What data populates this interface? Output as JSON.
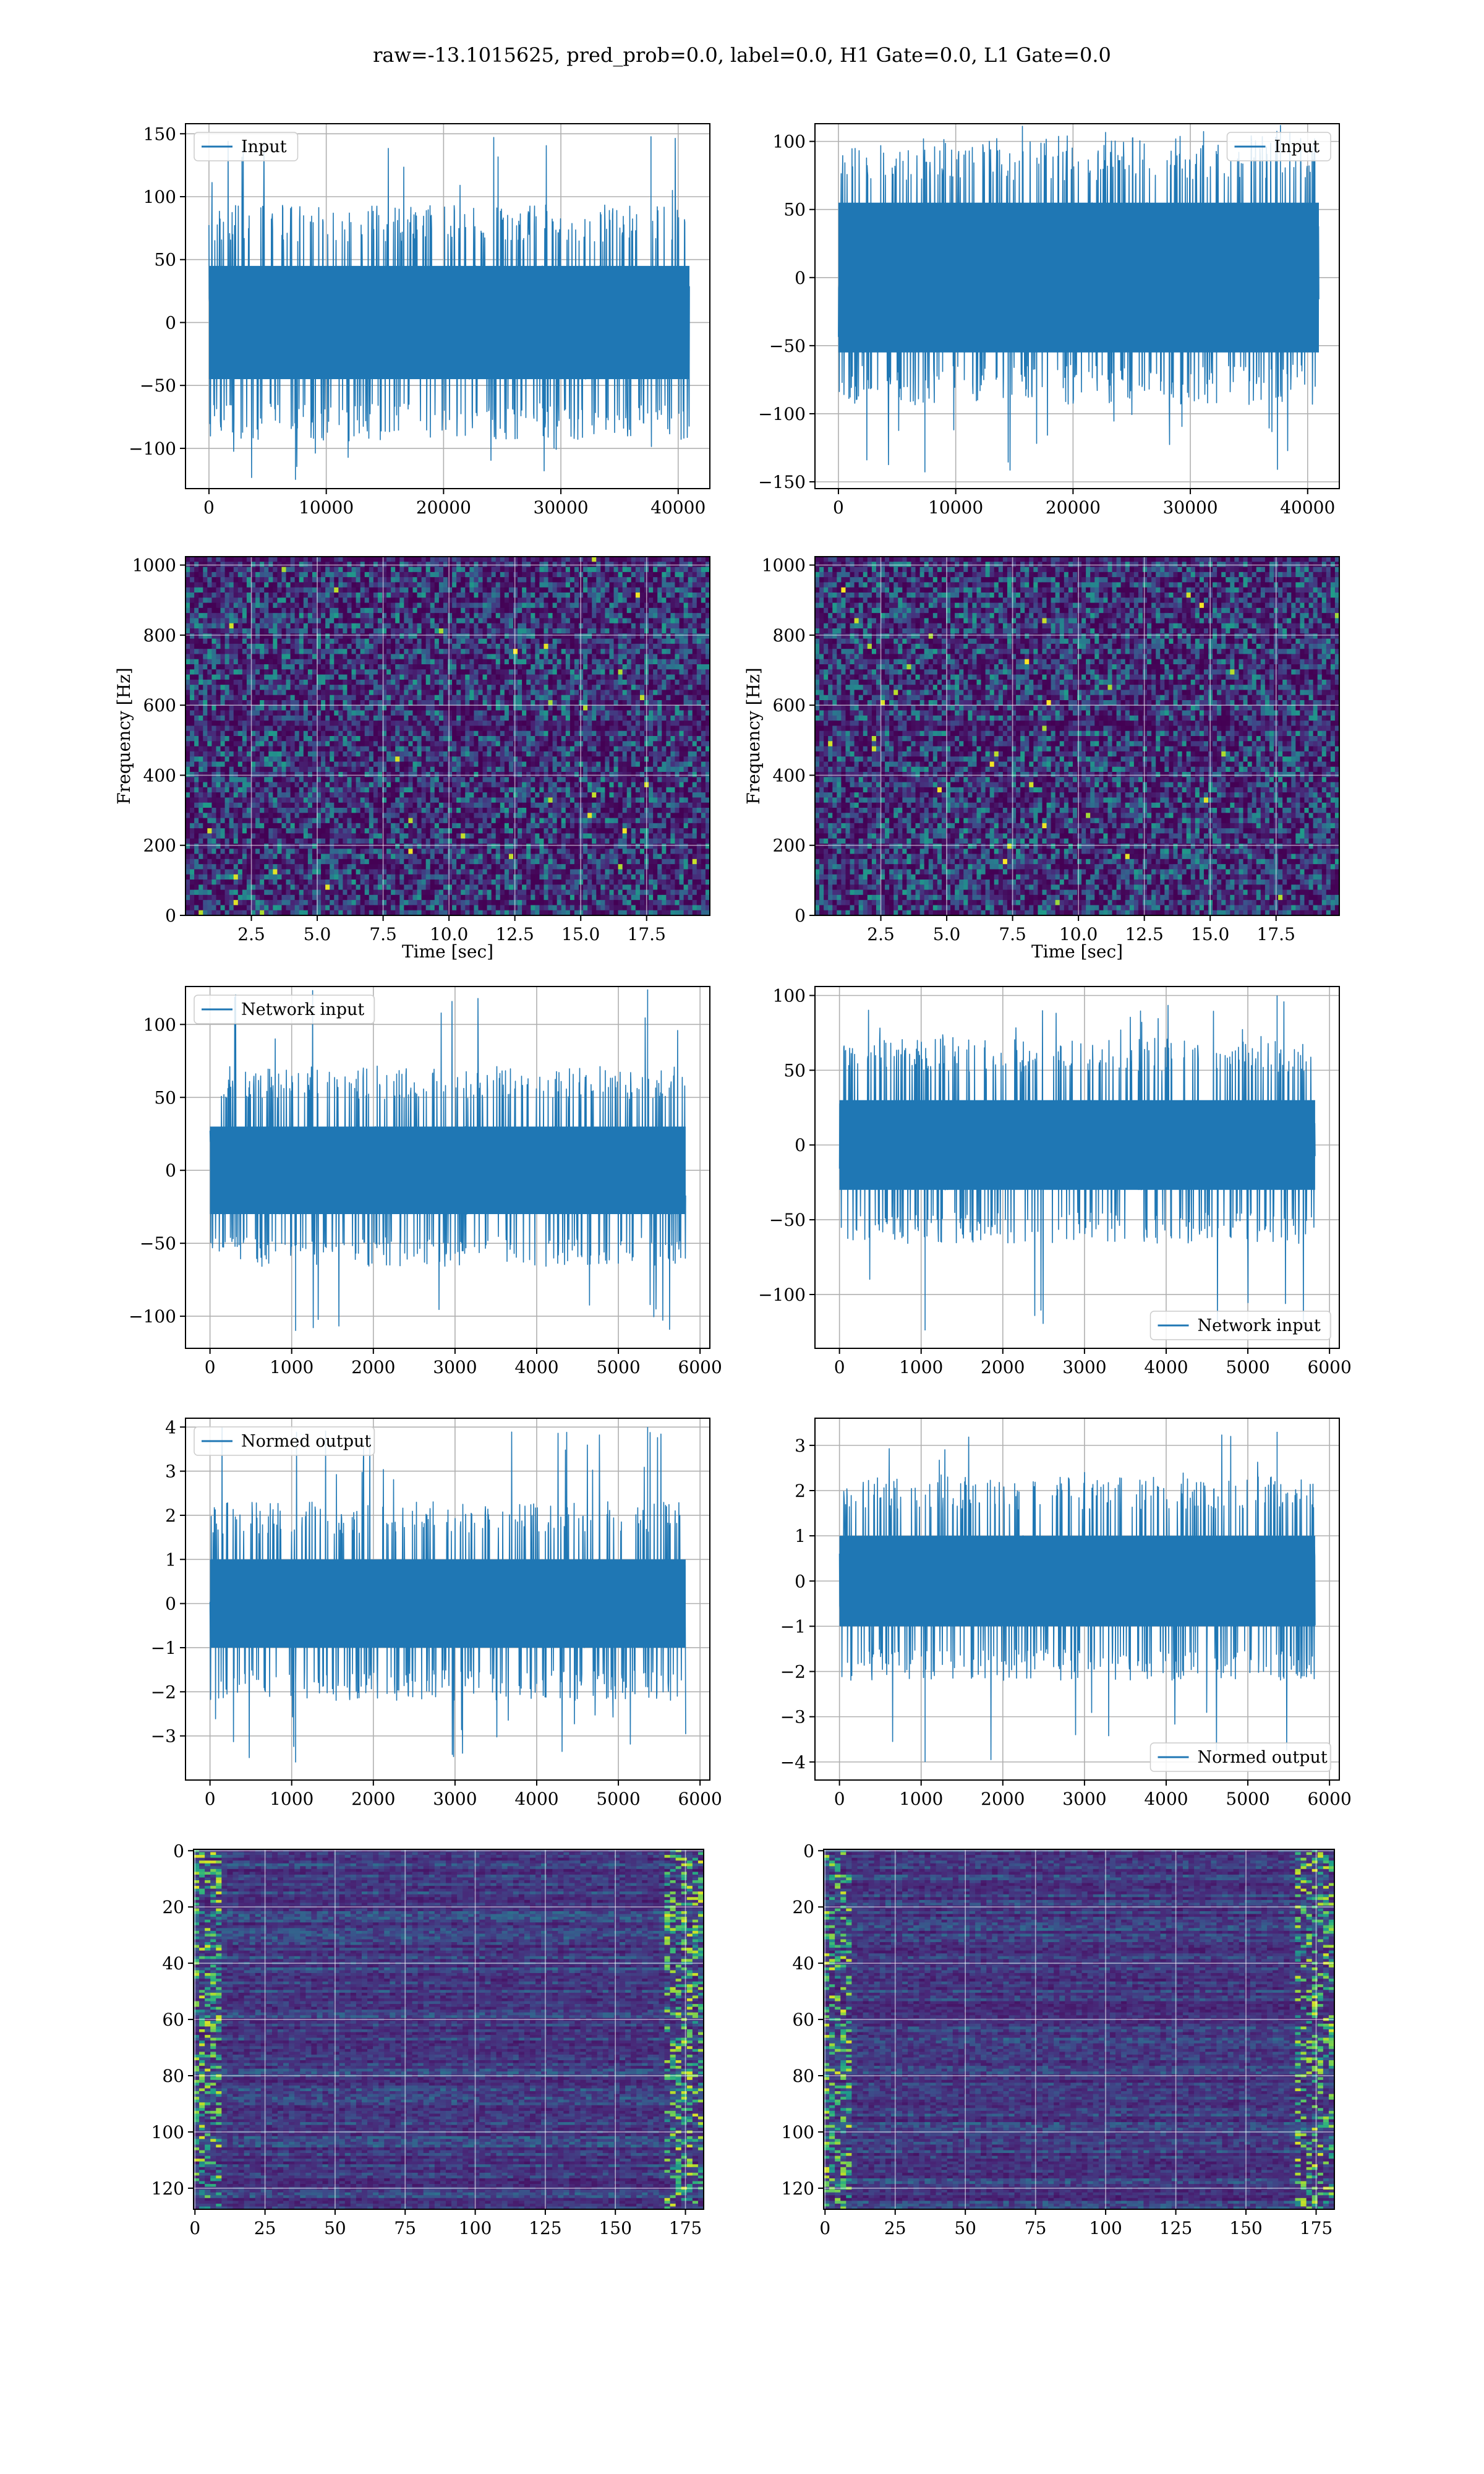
{
  "figure": {
    "title": "raw=-13.1015625, pred_prob=0.0, label=0.0, H1 Gate=0.0, L1 Gate=0.0"
  },
  "chart_data": [
    {
      "id": "input-h1",
      "type": "line",
      "series": [
        {
          "name": "Input",
          "color": "#1f77b4"
        }
      ],
      "legend": "upper left",
      "grid": true,
      "xlim": [
        -2000,
        42700
      ],
      "ylim": [
        -132,
        158
      ],
      "xticks": [
        0,
        10000,
        20000,
        30000,
        40000
      ],
      "xtick_labels": [
        "0",
        "10000",
        "20000",
        "30000",
        "40000"
      ],
      "yticks": [
        -100,
        -50,
        0,
        50,
        100,
        150
      ],
      "ytick_labels": [
        "−100",
        "−50",
        "0",
        "50",
        "100",
        "150"
      ],
      "x_range": [
        0,
        40960
      ],
      "band": [
        -45,
        45
      ],
      "envelope": [
        -85,
        85
      ],
      "extremes": [
        -125,
        148
      ],
      "xlabel": "",
      "ylabel": ""
    },
    {
      "id": "input-l1",
      "type": "line",
      "series": [
        {
          "name": "Input",
          "color": "#1f77b4"
        }
      ],
      "legend": "upper right",
      "grid": true,
      "xlim": [
        -2000,
        42700
      ],
      "ylim": [
        -155,
        113
      ],
      "xticks": [
        0,
        10000,
        20000,
        30000,
        40000
      ],
      "xtick_labels": [
        "0",
        "10000",
        "20000",
        "30000",
        "40000"
      ],
      "yticks": [
        -150,
        -100,
        -50,
        0,
        50,
        100
      ],
      "ytick_labels": [
        "−150",
        "−100",
        "−50",
        "0",
        "50",
        "100"
      ],
      "x_range": [
        0,
        40960
      ],
      "band": [
        -55,
        55
      ],
      "envelope": [
        -85,
        95
      ],
      "extremes": [
        -143,
        112
      ],
      "xlabel": "",
      "ylabel": ""
    },
    {
      "id": "spec-h1",
      "type": "heatmap",
      "colormap": "viridis",
      "grid": true,
      "xlim": [
        0.0,
        19.9
      ],
      "ylim": [
        0,
        1024
      ],
      "xticks": [
        2.5,
        5.0,
        7.5,
        10.0,
        12.5,
        15.0,
        17.5
      ],
      "xtick_labels": [
        "2.5",
        "5.0",
        "7.5",
        "10.0",
        "12.5",
        "15.0",
        "17.5"
      ],
      "yticks": [
        0,
        200,
        400,
        600,
        800,
        1000
      ],
      "ytick_labels": [
        "0",
        "200",
        "400",
        "600",
        "800",
        "1000"
      ],
      "xlabel": "Time [sec]",
      "ylabel": "Frequency [Hz]"
    },
    {
      "id": "spec-l1",
      "type": "heatmap",
      "colormap": "viridis",
      "grid": true,
      "xlim": [
        0.0,
        19.9
      ],
      "ylim": [
        0,
        1024
      ],
      "xticks": [
        2.5,
        5.0,
        7.5,
        10.0,
        12.5,
        15.0,
        17.5
      ],
      "xtick_labels": [
        "2.5",
        "5.0",
        "7.5",
        "10.0",
        "12.5",
        "15.0",
        "17.5"
      ],
      "yticks": [
        0,
        200,
        400,
        600,
        800,
        1000
      ],
      "ytick_labels": [
        "0",
        "200",
        "400",
        "600",
        "800",
        "1000"
      ],
      "xlabel": "Time [sec]",
      "ylabel": "Frequency [Hz]"
    },
    {
      "id": "net-h1",
      "type": "line",
      "series": [
        {
          "name": "Network input",
          "color": "#1f77b4"
        }
      ],
      "legend": "upper left",
      "grid": true,
      "xlim": [
        -300,
        6120
      ],
      "ylim": [
        -122,
        126
      ],
      "xticks": [
        0,
        1000,
        2000,
        3000,
        4000,
        5000,
        6000
      ],
      "xtick_labels": [
        "0",
        "1000",
        "2000",
        "3000",
        "4000",
        "5000",
        "6000"
      ],
      "yticks": [
        -100,
        -50,
        0,
        50,
        100
      ],
      "ytick_labels": [
        "−100",
        "−50",
        "0",
        "50",
        "100"
      ],
      "x_range": [
        0,
        5824
      ],
      "band": [
        -30,
        30
      ],
      "envelope": [
        -60,
        65
      ],
      "extremes": [
        -110,
        124
      ],
      "xlabel": "",
      "ylabel": ""
    },
    {
      "id": "net-l1",
      "type": "line",
      "series": [
        {
          "name": "Network input",
          "color": "#1f77b4"
        }
      ],
      "legend": "lower right",
      "grid": true,
      "xlim": [
        -300,
        6120
      ],
      "ylim": [
        -136,
        106
      ],
      "xticks": [
        0,
        1000,
        2000,
        3000,
        4000,
        5000,
        6000
      ],
      "xtick_labels": [
        "0",
        "1000",
        "2000",
        "3000",
        "4000",
        "5000",
        "6000"
      ],
      "yticks": [
        -100,
        -50,
        0,
        50,
        100
      ],
      "ytick_labels": [
        "−100",
        "−50",
        "0",
        "50",
        "100"
      ],
      "x_range": [
        0,
        5824
      ],
      "band": [
        -30,
        30
      ],
      "envelope": [
        -60,
        65
      ],
      "extremes": [
        -124,
        100
      ],
      "xlabel": "",
      "ylabel": ""
    },
    {
      "id": "norm-h1",
      "type": "line",
      "series": [
        {
          "name": "Normed output",
          "color": "#1f77b4"
        }
      ],
      "legend": "upper left",
      "grid": true,
      "xlim": [
        -300,
        6120
      ],
      "ylim": [
        -4.0,
        4.2
      ],
      "xticks": [
        0,
        1000,
        2000,
        3000,
        4000,
        5000,
        6000
      ],
      "xtick_labels": [
        "0",
        "1000",
        "2000",
        "3000",
        "4000",
        "5000",
        "6000"
      ],
      "yticks": [
        -3,
        -2,
        -1,
        0,
        1,
        2,
        3,
        4
      ],
      "ytick_labels": [
        "−3",
        "−2",
        "−1",
        "0",
        "1",
        "2",
        "3",
        "4"
      ],
      "x_range": [
        0,
        5824
      ],
      "band": [
        -1.0,
        1.0
      ],
      "envelope": [
        -2.0,
        2.1
      ],
      "extremes": [
        -3.6,
        4.0
      ],
      "xlabel": "",
      "ylabel": ""
    },
    {
      "id": "norm-l1",
      "type": "line",
      "series": [
        {
          "name": "Normed output",
          "color": "#1f77b4"
        }
      ],
      "legend": "lower right",
      "grid": true,
      "xlim": [
        -300,
        6120
      ],
      "ylim": [
        -4.4,
        3.6
      ],
      "xticks": [
        0,
        1000,
        2000,
        3000,
        4000,
        5000,
        6000
      ],
      "xtick_labels": [
        "0",
        "1000",
        "2000",
        "3000",
        "4000",
        "5000",
        "6000"
      ],
      "yticks": [
        -4,
        -3,
        -2,
        -1,
        0,
        1,
        2,
        3
      ],
      "ytick_labels": [
        "−4",
        "−3",
        "−2",
        "−1",
        "0",
        "1",
        "2",
        "3"
      ],
      "x_range": [
        0,
        5824
      ],
      "band": [
        -1.0,
        1.0
      ],
      "envelope": [
        -2.0,
        2.1
      ],
      "extremes": [
        -4.0,
        3.3
      ],
      "xlabel": "",
      "ylabel": ""
    },
    {
      "id": "feat-h1",
      "type": "heatmap",
      "colormap": "viridis",
      "grid": true,
      "xlim": [
        -0.5,
        181.5
      ],
      "ylim": [
        127.5,
        -0.5
      ],
      "xticks": [
        0,
        25,
        50,
        75,
        100,
        125,
        150,
        175
      ],
      "xtick_labels": [
        "0",
        "25",
        "50",
        "75",
        "100",
        "125",
        "150",
        "175"
      ],
      "yticks": [
        0,
        20,
        40,
        60,
        80,
        100,
        120
      ],
      "ytick_labels": [
        "0",
        "20",
        "40",
        "60",
        "80",
        "100",
        "120"
      ],
      "xlabel": "",
      "ylabel": ""
    },
    {
      "id": "feat-l1",
      "type": "heatmap",
      "colormap": "viridis",
      "grid": true,
      "xlim": [
        -0.5,
        181.5
      ],
      "ylim": [
        127.5,
        -0.5
      ],
      "xticks": [
        0,
        25,
        50,
        75,
        100,
        125,
        150,
        175
      ],
      "xtick_labels": [
        "0",
        "25",
        "50",
        "75",
        "100",
        "125",
        "150",
        "175"
      ],
      "yticks": [
        0,
        20,
        40,
        60,
        80,
        100,
        120
      ],
      "ytick_labels": [
        "0",
        "20",
        "40",
        "60",
        "80",
        "100",
        "120"
      ],
      "xlabel": "",
      "ylabel": ""
    }
  ]
}
